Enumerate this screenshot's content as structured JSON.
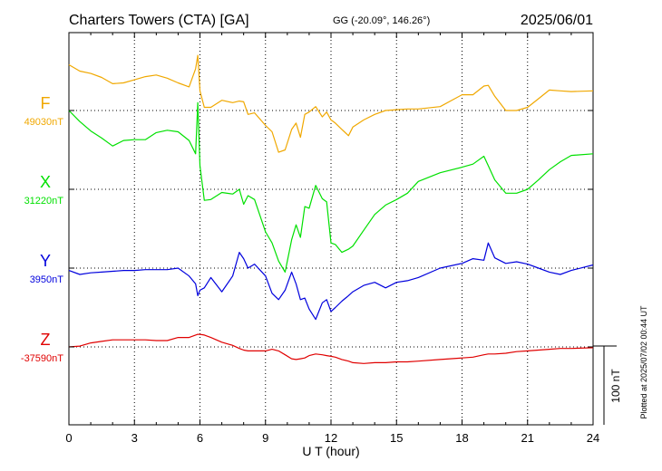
{
  "header": {
    "station": "Charters Towers (CTA)  [GA]",
    "coords": "GG (-20.09°, 146.26°)",
    "date": "2025/06/01"
  },
  "side_note": "Plotted at 2025/07/02 00:44 UT",
  "chart_data": {
    "type": "line",
    "xlabel": "U T (hour)",
    "xlim": [
      0,
      24
    ],
    "xticks": [
      0,
      3,
      6,
      9,
      12,
      15,
      18,
      21,
      24
    ],
    "xtick_labels": [
      "0",
      "3",
      "6",
      "9",
      "12",
      "15",
      "18",
      "21",
      "24"
    ],
    "scale_bar": {
      "label": "100 nT",
      "value_nT": 100
    },
    "grid": true,
    "series": [
      {
        "name": "F",
        "baseline_label": "49030nT",
        "baseline_nT": 49030,
        "color": "#f0a800",
        "x": [
          0,
          0.5,
          1,
          1.5,
          2,
          2.5,
          3,
          3.5,
          4,
          4.5,
          5,
          5.5,
          5.8,
          5.9,
          6,
          6.2,
          6.5,
          7,
          7.5,
          7.8,
          8,
          8.2,
          8.5,
          9,
          9.3,
          9.6,
          9.9,
          10.2,
          10.4,
          10.6,
          10.8,
          11,
          11.3,
          11.6,
          11.8,
          12,
          12.2,
          12.5,
          12.8,
          13,
          13.5,
          14,
          14.5,
          15,
          15.5,
          16,
          17,
          18,
          18.5,
          19,
          19.2,
          19.5,
          20,
          20.5,
          21,
          21.5,
          22,
          22.5,
          23,
          24
        ],
        "y": [
          58,
          50,
          47,
          42,
          34,
          35,
          39,
          43,
          45,
          41,
          35,
          30,
          53,
          70,
          25,
          4,
          4,
          13,
          10,
          12,
          11,
          -5,
          -3,
          -19,
          -27,
          -53,
          -50,
          -24,
          -16,
          -34,
          -5,
          -2,
          5,
          -8,
          -2,
          -12,
          -16,
          -24,
          -32,
          -21,
          -12,
          -5,
          0,
          1,
          2,
          2,
          5,
          20,
          20,
          31,
          32,
          18,
          0,
          0,
          4,
          15,
          26,
          25,
          24,
          25
        ]
      },
      {
        "name": "X",
        "baseline_label": "31220nT",
        "baseline_nT": 31220,
        "color": "#00e000",
        "x": [
          0,
          0.5,
          1,
          1.5,
          2,
          2.5,
          3,
          3.5,
          4,
          4.5,
          5,
          5.5,
          5.8,
          5.9,
          6,
          6.2,
          6.5,
          7,
          7.5,
          7.8,
          8,
          8.2,
          8.5,
          9,
          9.3,
          9.6,
          9.9,
          10.2,
          10.4,
          10.6,
          10.8,
          11,
          11.3,
          11.6,
          11.8,
          12,
          12.2,
          12.5,
          12.8,
          13,
          13.5,
          14,
          14.5,
          15,
          15.5,
          16,
          17,
          18,
          18.5,
          19,
          19.2,
          19.5,
          20,
          20.5,
          21,
          21.5,
          22,
          22.5,
          23,
          24
        ],
        "y": [
          100,
          86,
          74,
          65,
          55,
          62,
          63,
          63,
          72,
          75,
          73,
          62,
          45,
          110,
          30,
          -14,
          -13,
          -4,
          -6,
          0,
          -19,
          -8,
          -13,
          -54,
          -68,
          -91,
          -105,
          -64,
          -45,
          -61,
          -22,
          -24,
          5,
          -12,
          -16,
          -68,
          -70,
          -80,
          -76,
          -72,
          -52,
          -32,
          -20,
          -13,
          -5,
          10,
          21,
          28,
          32,
          42,
          30,
          12,
          -5,
          -5,
          0,
          12,
          25,
          35,
          43,
          45
        ]
      },
      {
        "name": "Y",
        "baseline_label": "3950nT",
        "baseline_nT": 3950,
        "color": "#0000dd",
        "x": [
          0,
          0.5,
          1,
          1.5,
          2,
          2.5,
          3,
          3.5,
          4,
          4.5,
          5,
          5.5,
          5.8,
          5.9,
          6,
          6.2,
          6.5,
          7,
          7.5,
          7.8,
          8,
          8.2,
          8.5,
          9,
          9.3,
          9.6,
          9.9,
          10.2,
          10.4,
          10.6,
          10.8,
          11,
          11.3,
          11.6,
          11.8,
          12,
          12.2,
          12.5,
          12.8,
          13,
          13.5,
          14,
          14.5,
          15,
          15.5,
          16,
          17,
          18,
          18.5,
          19,
          19.2,
          19.5,
          20,
          20.5,
          21,
          21.5,
          22,
          22.5,
          23,
          24
        ],
        "y": [
          -3,
          -8,
          -6,
          -5,
          -4,
          -3,
          -3,
          -2,
          -2,
          -2,
          0,
          -10,
          -20,
          -35,
          -28,
          -25,
          -12,
          -30,
          -10,
          20,
          12,
          0,
          5,
          -10,
          -32,
          -40,
          -28,
          -5,
          -20,
          -40,
          -38,
          -52,
          -65,
          -44,
          -40,
          -55,
          -50,
          -42,
          -35,
          -30,
          -22,
          -18,
          -25,
          -18,
          -16,
          -12,
          0,
          6,
          12,
          10,
          32,
          13,
          6,
          8,
          5,
          0,
          -5,
          -8,
          -3,
          4
        ]
      },
      {
        "name": "Z",
        "baseline_label": "-37590nT",
        "baseline_nT": -37590,
        "color": "#e00000",
        "x": [
          0,
          0.5,
          1,
          1.5,
          2,
          2.5,
          3,
          3.5,
          4,
          4.5,
          5,
          5.5,
          5.8,
          5.9,
          6,
          6.2,
          6.5,
          7,
          7.5,
          7.8,
          8,
          8.2,
          8.5,
          9,
          9.3,
          9.6,
          9.9,
          10.2,
          10.4,
          10.6,
          10.8,
          11,
          11.3,
          11.6,
          11.8,
          12,
          12.2,
          12.5,
          12.8,
          13,
          13.5,
          14,
          14.5,
          15,
          15.5,
          16,
          17,
          18,
          18.5,
          19,
          19.2,
          19.5,
          20,
          20.5,
          21,
          21.5,
          22,
          22.5,
          23,
          24
        ],
        "y": [
          0,
          1,
          5,
          7,
          9,
          9,
          9,
          9,
          8,
          8,
          12,
          12,
          15,
          16,
          16,
          15,
          12,
          6,
          2,
          -2,
          -4,
          -5,
          -5,
          -5,
          -3,
          -5,
          -10,
          -15,
          -16,
          -15,
          -14,
          -11,
          -9,
          -10,
          -11,
          -12,
          -13,
          -16,
          -18,
          -20,
          -21,
          -20,
          -20,
          -19,
          -19,
          -18,
          -16,
          -14,
          -13,
          -10,
          -9,
          -9,
          -8,
          -6,
          -5,
          -4,
          -3,
          -2,
          -2,
          -1
        ]
      }
    ]
  }
}
